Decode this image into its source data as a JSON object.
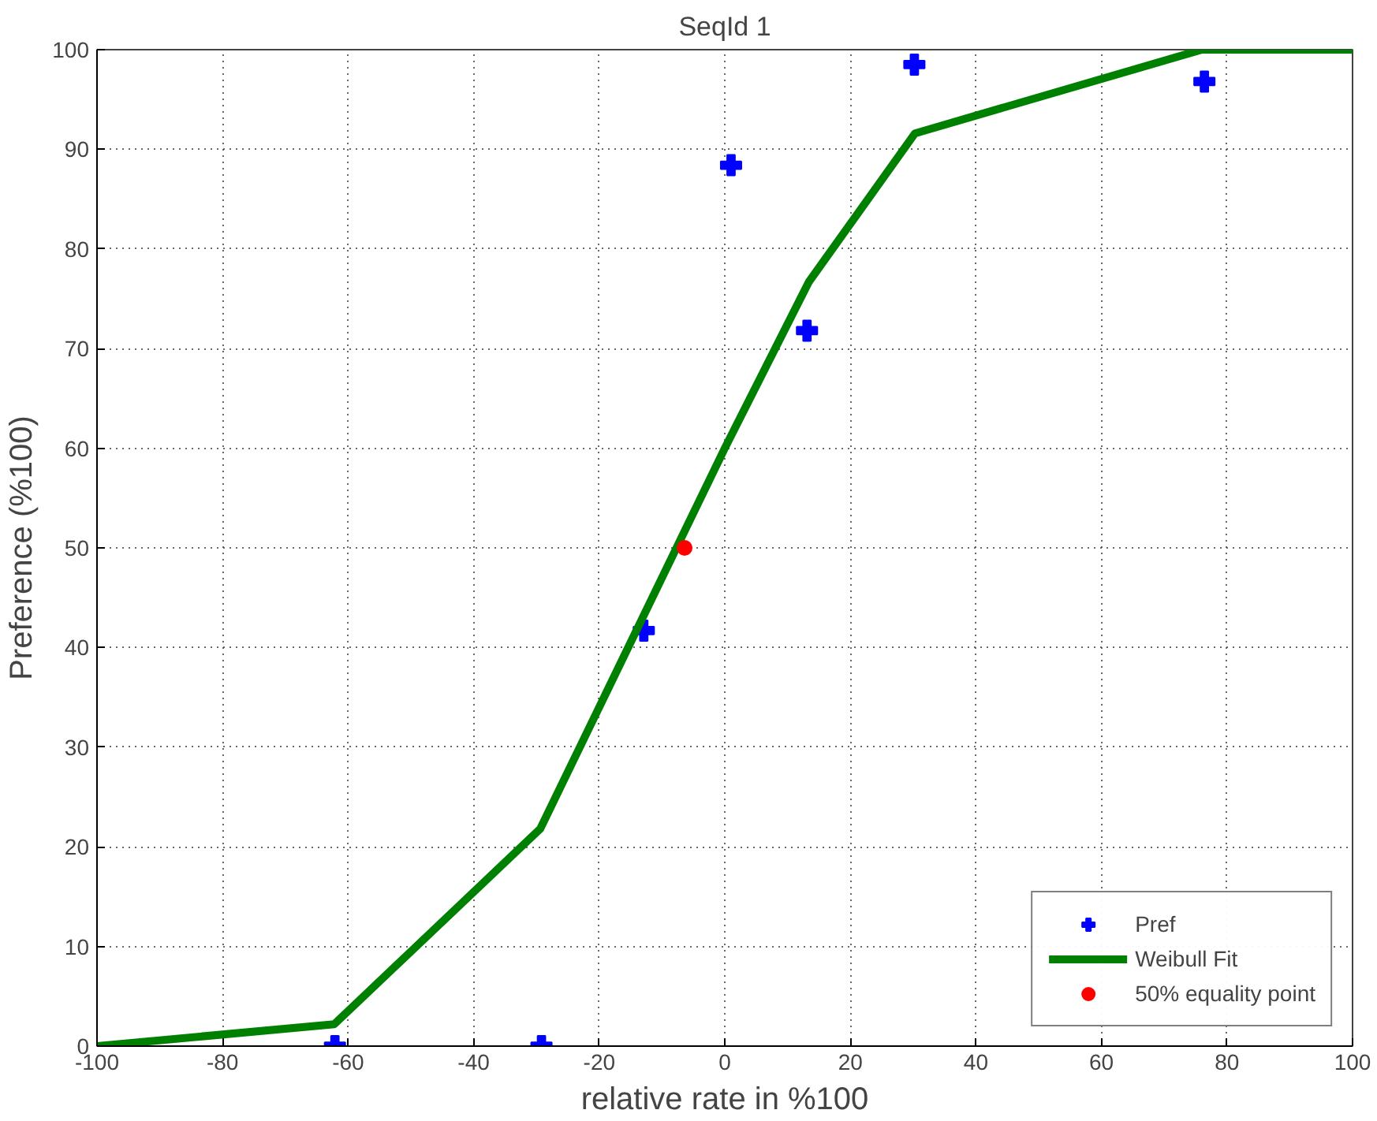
{
  "chart_data": {
    "type": "scatter",
    "title": "SeqId 1",
    "xlabel": "relative rate in %100",
    "ylabel": "Preference (%100)",
    "xlim": [
      -100,
      100
    ],
    "xticks": [
      -100,
      -80,
      -60,
      -40,
      -20,
      0,
      20,
      40,
      60,
      80,
      100
    ],
    "ylim": [
      0,
      100
    ],
    "yticks": [
      0,
      10,
      20,
      30,
      40,
      50,
      60,
      70,
      80,
      90,
      100
    ],
    "grid": true,
    "legend": "bottom right",
    "series": [
      {
        "name": "Pref",
        "marker": "cross",
        "color": "#0000ff",
        "x": [
          -62.1,
          -29.2,
          -12.9,
          1,
          13.1,
          30.2,
          76.4
        ],
        "values": [
          0,
          0,
          41.7,
          88.4,
          71.8,
          98.5,
          96.8
        ]
      },
      {
        "name": "Weibull Fit",
        "type": "line",
        "line_style": "solid",
        "color": "#008000",
        "x": [
          -100,
          -62.2,
          -29.4,
          0,
          13.4,
          30.3,
          76,
          100
        ],
        "values": [
          0,
          2.2,
          21.8,
          60,
          76.7,
          91.6,
          100,
          100
        ]
      },
      {
        "name": "50% equality point",
        "marker": "circle",
        "color": "#ff0000",
        "x": [
          -6.4
        ],
        "values": [
          50
        ]
      }
    ]
  }
}
